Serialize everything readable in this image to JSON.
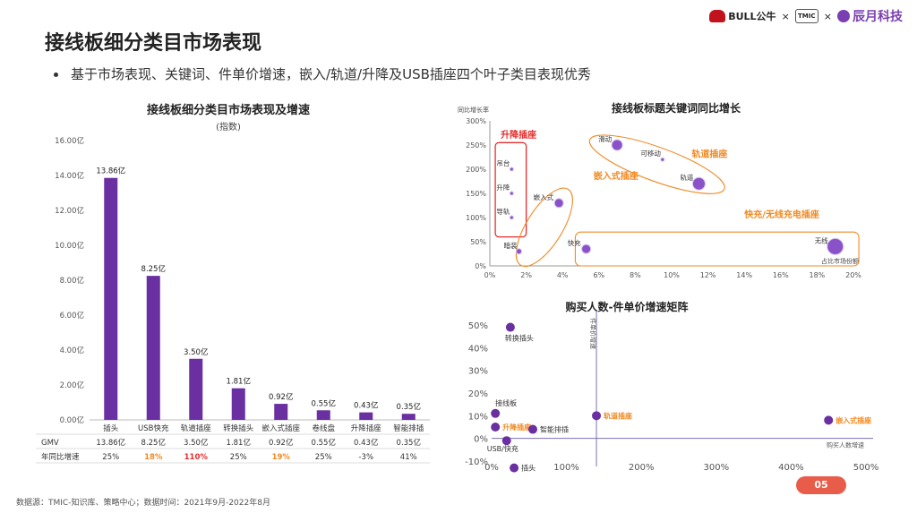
{
  "page": {
    "title": "接线板细分类目市场表现",
    "bullet": "基于市场表现、关键词、件单价增速，嵌入/轨道/升降及USB插座四个叶子类目表现优秀",
    "source": "数据源：TMIC-知识库、策略中心；数据时间：2021年9月-2022年8月",
    "page_number": "05",
    "logos": {
      "bull": "BULL公牛",
      "tmic": "TMIC",
      "chenyue": "辰月科技",
      "separator": "×"
    }
  },
  "chart_data": [
    {
      "id": "bar",
      "type": "bar",
      "title": "接线板细分类目市场表现及增速",
      "subtitle": "(指数)",
      "categories": [
        "插头",
        "USB快充",
        "轨道插座",
        "转换插头",
        "嵌入式插座",
        "卷线盘",
        "升降插座",
        "智能排插"
      ],
      "values": [
        13.86,
        8.25,
        3.5,
        1.81,
        0.92,
        0.55,
        0.43,
        0.35
      ],
      "value_labels": [
        "13.86亿",
        "8.25亿",
        "3.50亿",
        "1.81亿",
        "0.92亿",
        "0.55亿",
        "0.43亿",
        "0.35亿"
      ],
      "ylim": [
        0,
        16
      ],
      "y_ticks": [
        "0.00亿",
        "2.00亿",
        "4.00亿",
        "6.00亿",
        "8.00亿",
        "10.00亿",
        "12.00亿",
        "14.00亿",
        "16.00亿"
      ],
      "bar_color": "#6a2fa0",
      "table": {
        "rows": [
          {
            "label": "GMV",
            "values": [
              "13.86亿",
              "8.25亿",
              "3.50亿",
              "1.81亿",
              "0.92亿",
              "0.55亿",
              "0.43亿",
              "0.35亿"
            ]
          },
          {
            "label": "年同比增速",
            "values": [
              "25%",
              "18%",
              "110%",
              "25%",
              "19%",
              "25%",
              "-3%",
              "41%"
            ]
          }
        ],
        "highlight": [
          {
            "col": 1,
            "color": "#f08a24"
          },
          {
            "col": 2,
            "color": "#e52d2d"
          },
          {
            "col": 4,
            "color": "#f08a24"
          }
        ]
      }
    },
    {
      "id": "keyword",
      "type": "scatter",
      "title": "接线板标题关键词同比增长",
      "ylabel": "同比增长率",
      "xlabel": "占比市场份额",
      "xlim": [
        0,
        20
      ],
      "ylim": [
        0,
        300
      ],
      "x_ticks": [
        "0%",
        "2%",
        "4%",
        "6%",
        "8%",
        "10%",
        "12%",
        "14%",
        "16%",
        "18%",
        "20%"
      ],
      "y_ticks": [
        "0%",
        "50%",
        "100%",
        "150%",
        "200%",
        "250%",
        "300%"
      ],
      "point_color": "#8a52c8",
      "points": [
        {
          "label": "吊台",
          "x": 1.2,
          "y": 200,
          "size": 2
        },
        {
          "label": "升降",
          "x": 1.2,
          "y": 150,
          "size": 2
        },
        {
          "label": "导轨",
          "x": 1.2,
          "y": 100,
          "size": 2
        },
        {
          "label": "嵌入式",
          "x": 3.8,
          "y": 130,
          "size": 5
        },
        {
          "label": "暗装",
          "x": 1.6,
          "y": 30,
          "size": 3
        },
        {
          "label": "滑动",
          "x": 7.0,
          "y": 250,
          "size": 6
        },
        {
          "label": "可移动",
          "x": 9.5,
          "y": 220,
          "size": 2
        },
        {
          "label": "轨道",
          "x": 11.5,
          "y": 170,
          "size": 7
        },
        {
          "label": "快充",
          "x": 5.3,
          "y": 35,
          "size": 5
        },
        {
          "label": "无线",
          "x": 19.0,
          "y": 40,
          "size": 9
        }
      ],
      "groups": [
        {
          "label": "升降插座",
          "color": "#e52d2d"
        },
        {
          "label": "嵌入式插座",
          "color": "#f08a24"
        },
        {
          "label": "轨道插座",
          "color": "#f08a24"
        },
        {
          "label": "快充/无线充电插座",
          "color": "#f08a24"
        }
      ]
    },
    {
      "id": "matrix",
      "type": "scatter",
      "title": "购买人数-件单价增速矩阵",
      "ylabel": "件单价增速",
      "xlabel": "购买人数增速",
      "xlim": [
        0,
        500
      ],
      "ylim": [
        -10,
        50
      ],
      "x_ticks": [
        "0%",
        "100%",
        "200%",
        "300%",
        "400%",
        "500%"
      ],
      "y_ticks": [
        "-10%",
        "0%",
        "10%",
        "20%",
        "30%",
        "40%",
        "50%"
      ],
      "point_color": "#6a2fa0",
      "points": [
        {
          "label": "转换插头",
          "x": 25,
          "y": 49,
          "label_color": "#333"
        },
        {
          "label": "接线板",
          "x": 5,
          "y": 11,
          "label_color": "#333"
        },
        {
          "label": "升降插座",
          "x": 5,
          "y": 5,
          "label_color": "#f08a24"
        },
        {
          "label": "智能排插",
          "x": 55,
          "y": 4,
          "label_color": "#333"
        },
        {
          "label": "USB/快充",
          "x": 20,
          "y": -1,
          "label_color": "#333"
        },
        {
          "label": "插头",
          "x": 30,
          "y": -13,
          "label_color": "#333"
        },
        {
          "label": "轨道插座",
          "x": 140,
          "y": 10,
          "label_color": "#f08a24"
        },
        {
          "label": "嵌入式插座",
          "x": 450,
          "y": 8,
          "label_color": "#f08a24"
        }
      ],
      "ref_x": 140
    }
  ]
}
